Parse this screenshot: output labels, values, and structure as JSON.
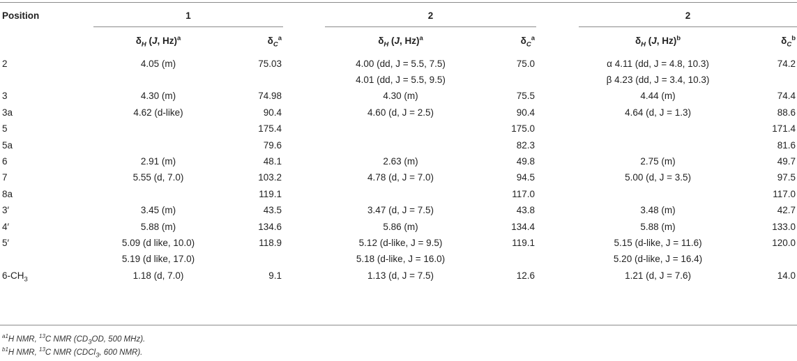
{
  "header": {
    "position_label": "Position",
    "groups": [
      "1",
      "2",
      "2"
    ]
  },
  "subheaders": [
    {
      "h": "δ",
      "h_sub": "H",
      "h_mid": " (",
      "h_j": "J",
      "h_tail": ", Hz)",
      "h_sup": "a",
      "c": "δ",
      "c_sub": "C",
      "c_sup": "a"
    },
    {
      "h": "δ",
      "h_sub": "H",
      "h_mid": " (",
      "h_j": "J",
      "h_tail": ", Hz)",
      "h_sup": "a",
      "c": "δ",
      "c_sub": "C",
      "c_sup": "a"
    },
    {
      "h": "δ",
      "h_sub": "H",
      "h_mid": " (",
      "h_j": "J",
      "h_tail": ", Hz)",
      "h_sup": "b",
      "c": "δ",
      "c_sub": "C",
      "c_sup": "b"
    }
  ],
  "rows": [
    {
      "pos": "2",
      "pos_sub": "",
      "h1": "4.05 (m)",
      "c1": "75.03",
      "h2": "4.00 (dd, J = 5.5, 7.5)",
      "c2": "75.0",
      "h3": "α 4.11 (dd, J = 4.8, 10.3)",
      "c3": "74.2"
    },
    {
      "pos": "",
      "pos_sub": "",
      "h1": "",
      "c1": "",
      "h2": "4.01 (dd, J = 5.5, 9.5)",
      "c2": "",
      "h3": "β 4.23 (dd, J = 3.4, 10.3)",
      "c3": ""
    },
    {
      "pos": "3",
      "pos_sub": "",
      "h1": "4.30 (m)",
      "c1": "74.98",
      "h2": "4.30 (m)",
      "c2": "75.5",
      "h3": "4.44 (m)",
      "c3": "74.4"
    },
    {
      "pos": "3a",
      "pos_sub": "",
      "h1": "4.62 (d-like)",
      "c1": "90.4",
      "h2": "4.60 (d, J = 2.5)",
      "c2": "90.4",
      "h3": "4.64 (d, J = 1.3)",
      "c3": "88.6"
    },
    {
      "pos": "5",
      "pos_sub": "",
      "h1": "",
      "c1": "175.4",
      "h2": "",
      "c2": "175.0",
      "h3": "",
      "c3": "171.4"
    },
    {
      "pos": "5a",
      "pos_sub": "",
      "h1": "",
      "c1": "79.6",
      "h2": "",
      "c2": "82.3",
      "h3": "",
      "c3": "81.6"
    },
    {
      "pos": "6",
      "pos_sub": "",
      "h1": "2.91 (m)",
      "c1": "48.1",
      "h2": "2.63 (m)",
      "c2": "49.8",
      "h3": "2.75 (m)",
      "c3": "49.7"
    },
    {
      "pos": "7",
      "pos_sub": "",
      "h1": "5.55 (d, 7.0)",
      "c1": "103.2",
      "h2": "4.78 (d, J = 7.0)",
      "c2": "94.5",
      "h3": "5.00 (d, J = 3.5)",
      "c3": "97.5"
    },
    {
      "pos": "8a",
      "pos_sub": "",
      "h1": "",
      "c1": "119.1",
      "h2": "",
      "c2": "117.0",
      "h3": "",
      "c3": "117.0"
    },
    {
      "pos": "3′",
      "pos_sub": "",
      "h1": "3.45 (m)",
      "c1": "43.5",
      "h2": "3.47 (d, J = 7.5)",
      "c2": "43.8",
      "h3": "3.48 (m)",
      "c3": "42.7"
    },
    {
      "pos": "4′",
      "pos_sub": "",
      "h1": "5.88 (m)",
      "c1": "134.6",
      "h2": "5.86 (m)",
      "c2": "134.4",
      "h3": "5.88 (m)",
      "c3": "133.0"
    },
    {
      "pos": "5′",
      "pos_sub": "",
      "h1": "5.09 (d like, 10.0)",
      "c1": "118.9",
      "h2": "5.12 (d-like, J = 9.5)",
      "c2": "119.1",
      "h3": "5.15 (d-like, J = 11.6)",
      "c3": "120.0"
    },
    {
      "pos": "",
      "pos_sub": "",
      "h1": "5.19 (d like, 17.0)",
      "c1": "",
      "h2": "5.18 (d-like, J = 16.0)",
      "c2": "",
      "h3": "5.20 (d-like, J = 16.4)",
      "c3": ""
    },
    {
      "pos": "6-CH",
      "pos_sub": "3",
      "h1": "1.18 (d, 7.0)",
      "c1": "9.1",
      "h2": "1.13 (d, J = 7.5)",
      "c2": "12.6",
      "h3": "1.21 (d, J = 7.6)",
      "c3": "14.0"
    }
  ],
  "footnotes": [
    {
      "sup1": "a1",
      "t1": "H NMR, ",
      "sup2": "13",
      "t2": "C NMR (CD",
      "sub1": "3",
      "t3": "OD, 500 MHz)."
    },
    {
      "sup1": "b1",
      "t1": "H NMR, ",
      "sup2": "13",
      "t2": "C NMR (CDCl",
      "sub1": "3",
      "t3": ", 600 NMR)."
    }
  ]
}
